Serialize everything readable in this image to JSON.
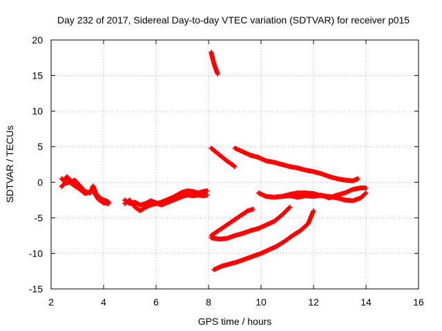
{
  "chart_data": {
    "type": "scatter",
    "title": "Day 232 of 2017, Sidereal Day-to-day VTEC variation (SDTVAR) for receiver p015",
    "xlabel": "GPS time / hours",
    "ylabel": "SDTVAR / TECUs",
    "xlim": [
      2,
      16
    ],
    "ylim": [
      -15,
      20
    ],
    "xticks": [
      "2",
      "4",
      "6",
      "8",
      "10",
      "12",
      "14",
      "16"
    ],
    "yticks": [
      "-15",
      "-10",
      "-5",
      "0",
      "5",
      "10",
      "15",
      "20"
    ],
    "grid": true,
    "marker": "+",
    "color": "#ff0000",
    "series": [
      {
        "points": [
          [
            2.4,
            0.5
          ],
          [
            2.5,
            0.2
          ],
          [
            2.6,
            0.8
          ],
          [
            2.7,
            0.4
          ],
          [
            2.8,
            0.1
          ],
          [
            2.9,
            0.3
          ],
          [
            3.0,
            -0.1
          ],
          [
            3.1,
            -0.5
          ],
          [
            3.2,
            -0.9
          ],
          [
            3.3,
            -1.3
          ],
          [
            3.5,
            -1.5
          ],
          [
            3.6,
            -0.5
          ],
          [
            3.7,
            -1.5
          ],
          [
            3.8,
            -2.0
          ],
          [
            3.9,
            -2.3
          ],
          [
            4.0,
            -2.5
          ],
          [
            4.1,
            -2.6
          ],
          [
            4.2,
            -2.8
          ]
        ]
      },
      {
        "points": [
          [
            2.4,
            -0.6
          ],
          [
            2.5,
            -0.2
          ],
          [
            2.7,
            0.0
          ],
          [
            2.9,
            -0.5
          ],
          [
            3.1,
            -1.0
          ],
          [
            3.3,
            -1.6
          ],
          [
            3.6,
            -1.2
          ],
          [
            3.8,
            -2.4
          ],
          [
            4.0,
            -2.9
          ],
          [
            4.2,
            -3.0
          ]
        ]
      },
      {
        "points": [
          [
            4.8,
            -3.0
          ],
          [
            5.0,
            -2.5
          ],
          [
            5.2,
            -3.5
          ],
          [
            5.4,
            -4.0
          ],
          [
            5.6,
            -3.5
          ],
          [
            5.8,
            -3.2
          ],
          [
            6.0,
            -3.0
          ],
          [
            6.2,
            -2.8
          ],
          [
            6.4,
            -2.5
          ],
          [
            6.6,
            -2.2
          ],
          [
            6.8,
            -1.8
          ],
          [
            7.0,
            -1.4
          ],
          [
            7.2,
            -1.2
          ],
          [
            7.4,
            -1.3
          ],
          [
            7.6,
            -1.5
          ],
          [
            7.8,
            -1.3
          ],
          [
            7.95,
            -1.2
          ]
        ]
      },
      {
        "points": [
          [
            4.8,
            -2.5
          ],
          [
            5.0,
            -3.0
          ],
          [
            5.2,
            -2.8
          ],
          [
            5.4,
            -3.2
          ],
          [
            5.6,
            -3.0
          ],
          [
            5.8,
            -2.6
          ],
          [
            6.0,
            -2.9
          ],
          [
            6.2,
            -3.2
          ],
          [
            6.4,
            -2.9
          ],
          [
            6.6,
            -2.6
          ],
          [
            6.8,
            -2.3
          ],
          [
            7.0,
            -2.0
          ],
          [
            7.2,
            -1.8
          ],
          [
            7.4,
            -1.9
          ],
          [
            7.6,
            -1.8
          ],
          [
            7.8,
            -1.9
          ],
          [
            7.95,
            -1.8
          ]
        ]
      },
      {
        "points": [
          [
            8.1,
            18.3
          ],
          [
            8.15,
            17.5
          ],
          [
            8.2,
            16.8
          ],
          [
            8.25,
            16.2
          ],
          [
            8.3,
            15.7
          ],
          [
            8.35,
            15.2
          ]
        ]
      },
      {
        "points": [
          [
            8.1,
            4.8
          ],
          [
            8.3,
            4.2
          ],
          [
            8.5,
            3.6
          ],
          [
            8.7,
            3.0
          ],
          [
            8.9,
            2.5
          ],
          [
            9.0,
            2.2
          ]
        ]
      },
      {
        "points": [
          [
            9.0,
            4.8
          ],
          [
            9.3,
            4.3
          ],
          [
            9.6,
            3.8
          ],
          [
            9.9,
            3.5
          ],
          [
            10.2,
            3.0
          ],
          [
            10.5,
            2.8
          ],
          [
            10.8,
            2.5
          ],
          [
            11.1,
            2.2
          ],
          [
            11.4,
            2.0
          ],
          [
            11.7,
            1.7
          ],
          [
            12.0,
            1.5
          ],
          [
            12.3,
            1.2
          ],
          [
            12.6,
            0.8
          ],
          [
            12.9,
            0.5
          ],
          [
            13.2,
            0.3
          ],
          [
            13.5,
            0.2
          ],
          [
            13.7,
            0.5
          ]
        ]
      },
      {
        "points": [
          [
            9.9,
            -1.5
          ],
          [
            10.2,
            -2.0
          ],
          [
            10.5,
            -2.1
          ],
          [
            10.8,
            -2.0
          ],
          [
            11.1,
            -1.7
          ],
          [
            11.4,
            -1.5
          ],
          [
            11.7,
            -1.5
          ],
          [
            12.0,
            -1.6
          ],
          [
            12.3,
            -1.9
          ],
          [
            12.6,
            -2.0
          ],
          [
            12.9,
            -2.2
          ],
          [
            13.2,
            -2.5
          ],
          [
            13.5,
            -2.6
          ],
          [
            13.8,
            -2.2
          ],
          [
            14.0,
            -1.5
          ]
        ]
      },
      {
        "points": [
          [
            10.8,
            -2.0
          ],
          [
            11.1,
            -1.9
          ],
          [
            11.4,
            -2.1
          ],
          [
            11.7,
            -1.9
          ],
          [
            12.0,
            -2.0
          ],
          [
            12.3,
            -1.8
          ],
          [
            12.6,
            -2.2
          ],
          [
            12.9,
            -1.8
          ],
          [
            13.2,
            -1.5
          ],
          [
            13.5,
            -1.0
          ],
          [
            13.8,
            -0.8
          ],
          [
            14.0,
            -0.8
          ]
        ]
      },
      {
        "points": [
          [
            8.1,
            -7.5
          ],
          [
            8.3,
            -7.0
          ],
          [
            8.5,
            -6.5
          ],
          [
            8.7,
            -6.0
          ],
          [
            8.9,
            -5.5
          ],
          [
            9.1,
            -5.0
          ],
          [
            9.3,
            -4.5
          ],
          [
            9.5,
            -4.0
          ],
          [
            9.7,
            -3.8
          ]
        ]
      },
      {
        "points": [
          [
            8.1,
            -7.8
          ],
          [
            8.4,
            -8.0
          ],
          [
            8.7,
            -7.9
          ],
          [
            9.0,
            -7.5
          ],
          [
            9.3,
            -7.2
          ],
          [
            9.6,
            -6.8
          ],
          [
            9.9,
            -6.5
          ],
          [
            10.2,
            -6.0
          ],
          [
            10.5,
            -5.5
          ],
          [
            10.8,
            -4.6
          ],
          [
            11.1,
            -3.5
          ]
        ]
      },
      {
        "points": [
          [
            8.2,
            -12.3
          ],
          [
            8.5,
            -11.8
          ],
          [
            8.8,
            -11.5
          ],
          [
            9.1,
            -11.2
          ],
          [
            9.4,
            -10.8
          ],
          [
            9.7,
            -10.4
          ],
          [
            10.0,
            -10.0
          ],
          [
            10.3,
            -9.5
          ],
          [
            10.6,
            -9.0
          ],
          [
            10.9,
            -8.3
          ],
          [
            11.2,
            -7.5
          ],
          [
            11.5,
            -6.8
          ],
          [
            11.8,
            -5.8
          ],
          [
            12.0,
            -4.0
          ]
        ]
      }
    ]
  }
}
